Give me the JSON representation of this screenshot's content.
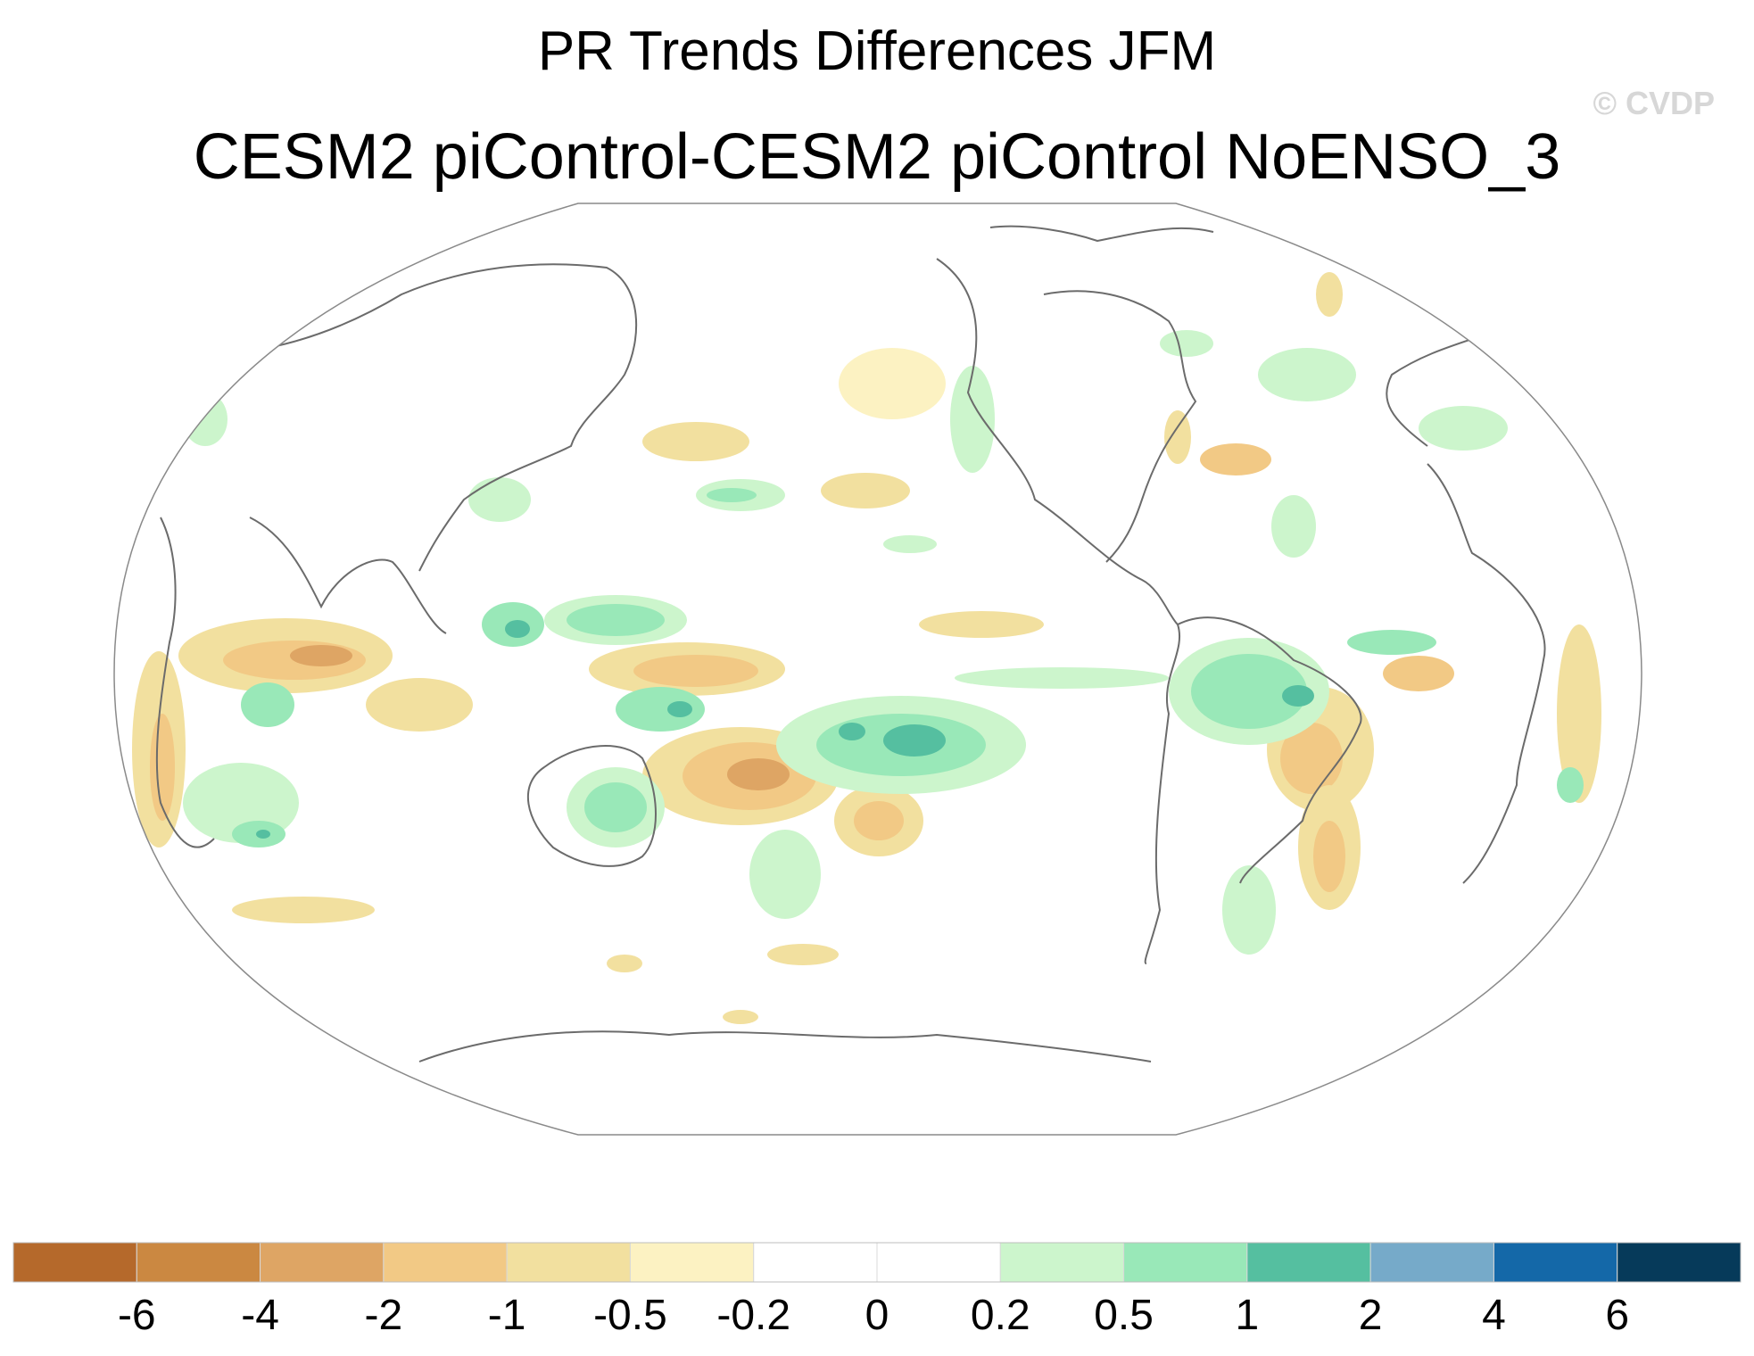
{
  "title": "PR Trends Differences JFM",
  "subtitle": "CESM2 piControl-CESM2 piControl NoENSO_3",
  "watermark": "© CVDP",
  "colorbar": {
    "colors": [
      "#b5692b",
      "#cb8841",
      "#dea564",
      "#f2c985",
      "#f2e09f",
      "#fcf2c2",
      "#ffffff",
      "#ffffff",
      "#ccf5cc",
      "#99e8b8",
      "#55bfa0",
      "#76aac9",
      "#1468a8",
      "#063a5a"
    ],
    "ticks": [
      "-6",
      "-4",
      "-2",
      "-1",
      "-0.5",
      "-0.2",
      "0",
      "0.2",
      "0.5",
      "1",
      "2",
      "4",
      "6"
    ]
  },
  "colors": {
    "brown_dark": "#dea564",
    "brown_mid": "#f2c985",
    "brown_light": "#fcf2c2",
    "green_light": "#ccf5cc",
    "green_mid": "#99e8b8",
    "teal": "#55bfa0",
    "coast": "#6b6b6b"
  }
}
